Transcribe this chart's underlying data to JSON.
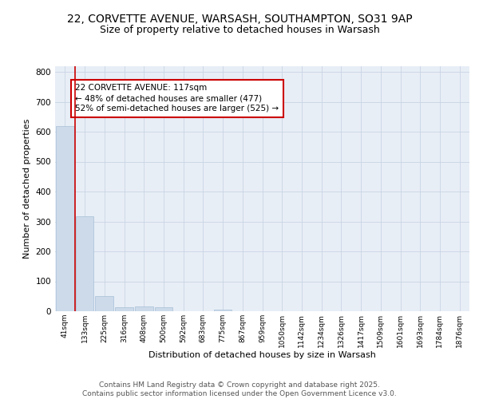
{
  "title_line1": "22, CORVETTE AVENUE, WARSASH, SOUTHAMPTON, SO31 9AP",
  "title_line2": "Size of property relative to detached houses in Warsash",
  "xlabel": "Distribution of detached houses by size in Warsash",
  "ylabel": "Number of detached properties",
  "bar_labels": [
    "41sqm",
    "133sqm",
    "225sqm",
    "316sqm",
    "408sqm",
    "500sqm",
    "592sqm",
    "683sqm",
    "775sqm",
    "867sqm",
    "959sqm",
    "1050sqm",
    "1142sqm",
    "1234sqm",
    "1326sqm",
    "1417sqm",
    "1509sqm",
    "1601sqm",
    "1693sqm",
    "1784sqm",
    "1876sqm"
  ],
  "bar_values": [
    620,
    318,
    52,
    14,
    17,
    13,
    0,
    0,
    6,
    0,
    0,
    0,
    0,
    0,
    0,
    0,
    0,
    0,
    0,
    0,
    0
  ],
  "bar_color": "#ccdaea",
  "bar_edge_color": "#a8c0d8",
  "grid_color": "#c8d4e4",
  "bg_color": "#e8eef6",
  "vline_color": "#cc0000",
  "annotation_text": "22 CORVETTE AVENUE: 117sqm\n← 48% of detached houses are smaller (477)\n52% of semi-detached houses are larger (525) →",
  "annotation_box_color": "#cc0000",
  "ylim": [
    0,
    820
  ],
  "yticks": [
    0,
    100,
    200,
    300,
    400,
    500,
    600,
    700,
    800
  ],
  "footer_text": "Contains HM Land Registry data © Crown copyright and database right 2025.\nContains public sector information licensed under the Open Government Licence v3.0.",
  "title_fontsize": 10,
  "subtitle_fontsize": 9,
  "annotation_fontsize": 7.5,
  "footer_fontsize": 6.5,
  "ylabel_fontsize": 8,
  "xlabel_fontsize": 8
}
